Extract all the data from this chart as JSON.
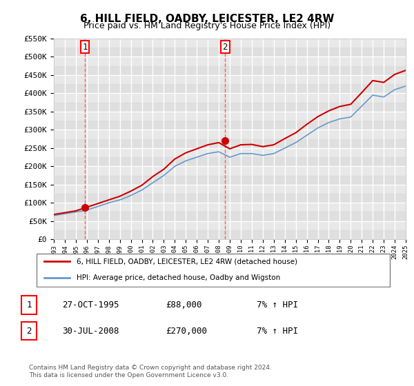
{
  "title": "6, HILL FIELD, OADBY, LEICESTER, LE2 4RW",
  "subtitle": "Price paid vs. HM Land Registry's House Price Index (HPI)",
  "ylabel": "",
  "background_color": "#ffffff",
  "plot_bg_color": "#f0f0f0",
  "hatch_color": "#d8d8d8",
  "grid_color": "#ffffff",
  "sale_dates": [
    "1995-10-27",
    "2008-07-30"
  ],
  "sale_prices": [
    88000,
    270000
  ],
  "sale_labels": [
    "1",
    "2"
  ],
  "dashed_line_color": "#ff4444",
  "sale_dot_color": "#cc0000",
  "hpi_line_color": "#6699cc",
  "price_line_color": "#cc0000",
  "ylim": [
    0,
    550000
  ],
  "yticks": [
    0,
    50000,
    100000,
    150000,
    200000,
    250000,
    300000,
    350000,
    400000,
    450000,
    500000,
    550000
  ],
  "legend_label_price": "6, HILL FIELD, OADBY, LEICESTER, LE2 4RW (detached house)",
  "legend_label_hpi": "HPI: Average price, detached house, Oadby and Wigston",
  "footnote": "Contains HM Land Registry data © Crown copyright and database right 2024.\nThis data is licensed under the Open Government Licence v3.0.",
  "table_data": [
    [
      "1",
      "27-OCT-1995",
      "£88,000",
      "7% ↑ HPI"
    ],
    [
      "2",
      "30-JUL-2008",
      "£270,000",
      "7% ↑ HPI"
    ]
  ],
  "hpi_data_years": [
    1993,
    1994,
    1995,
    1996,
    1997,
    1998,
    1999,
    2000,
    2001,
    2002,
    2003,
    2004,
    2005,
    2006,
    2007,
    2008,
    2009,
    2010,
    2011,
    2012,
    2013,
    2014,
    2015,
    2016,
    2017,
    2018,
    2019,
    2020,
    2021,
    2022,
    2023,
    2024,
    2025
  ],
  "hpi_values": [
    65000,
    70000,
    75000,
    80000,
    90000,
    100000,
    108000,
    120000,
    135000,
    155000,
    175000,
    200000,
    215000,
    225000,
    235000,
    240000,
    225000,
    235000,
    235000,
    230000,
    235000,
    250000,
    265000,
    285000,
    305000,
    320000,
    330000,
    335000,
    365000,
    395000,
    390000,
    410000,
    420000
  ],
  "price_data_years": [
    1993,
    1994,
    1995,
    1996,
    1997,
    1998,
    1999,
    2000,
    2001,
    2002,
    2003,
    2004,
    2005,
    2006,
    2007,
    2008,
    2009,
    2010,
    2011,
    2012,
    2013,
    2014,
    2015,
    2016,
    2017,
    2018,
    2019,
    2020,
    2021,
    2022,
    2023,
    2024,
    2025
  ],
  "price_values": [
    68000,
    73000,
    78000,
    88000,
    98000,
    108000,
    118000,
    132000,
    148000,
    172000,
    192000,
    220000,
    237000,
    248000,
    259000,
    265000,
    248000,
    259000,
    260000,
    254000,
    259000,
    276000,
    292000,
    315000,
    336000,
    352000,
    364000,
    370000,
    402000,
    435000,
    430000,
    452000,
    463000
  ],
  "xmin": 1993,
  "xmax": 2025
}
